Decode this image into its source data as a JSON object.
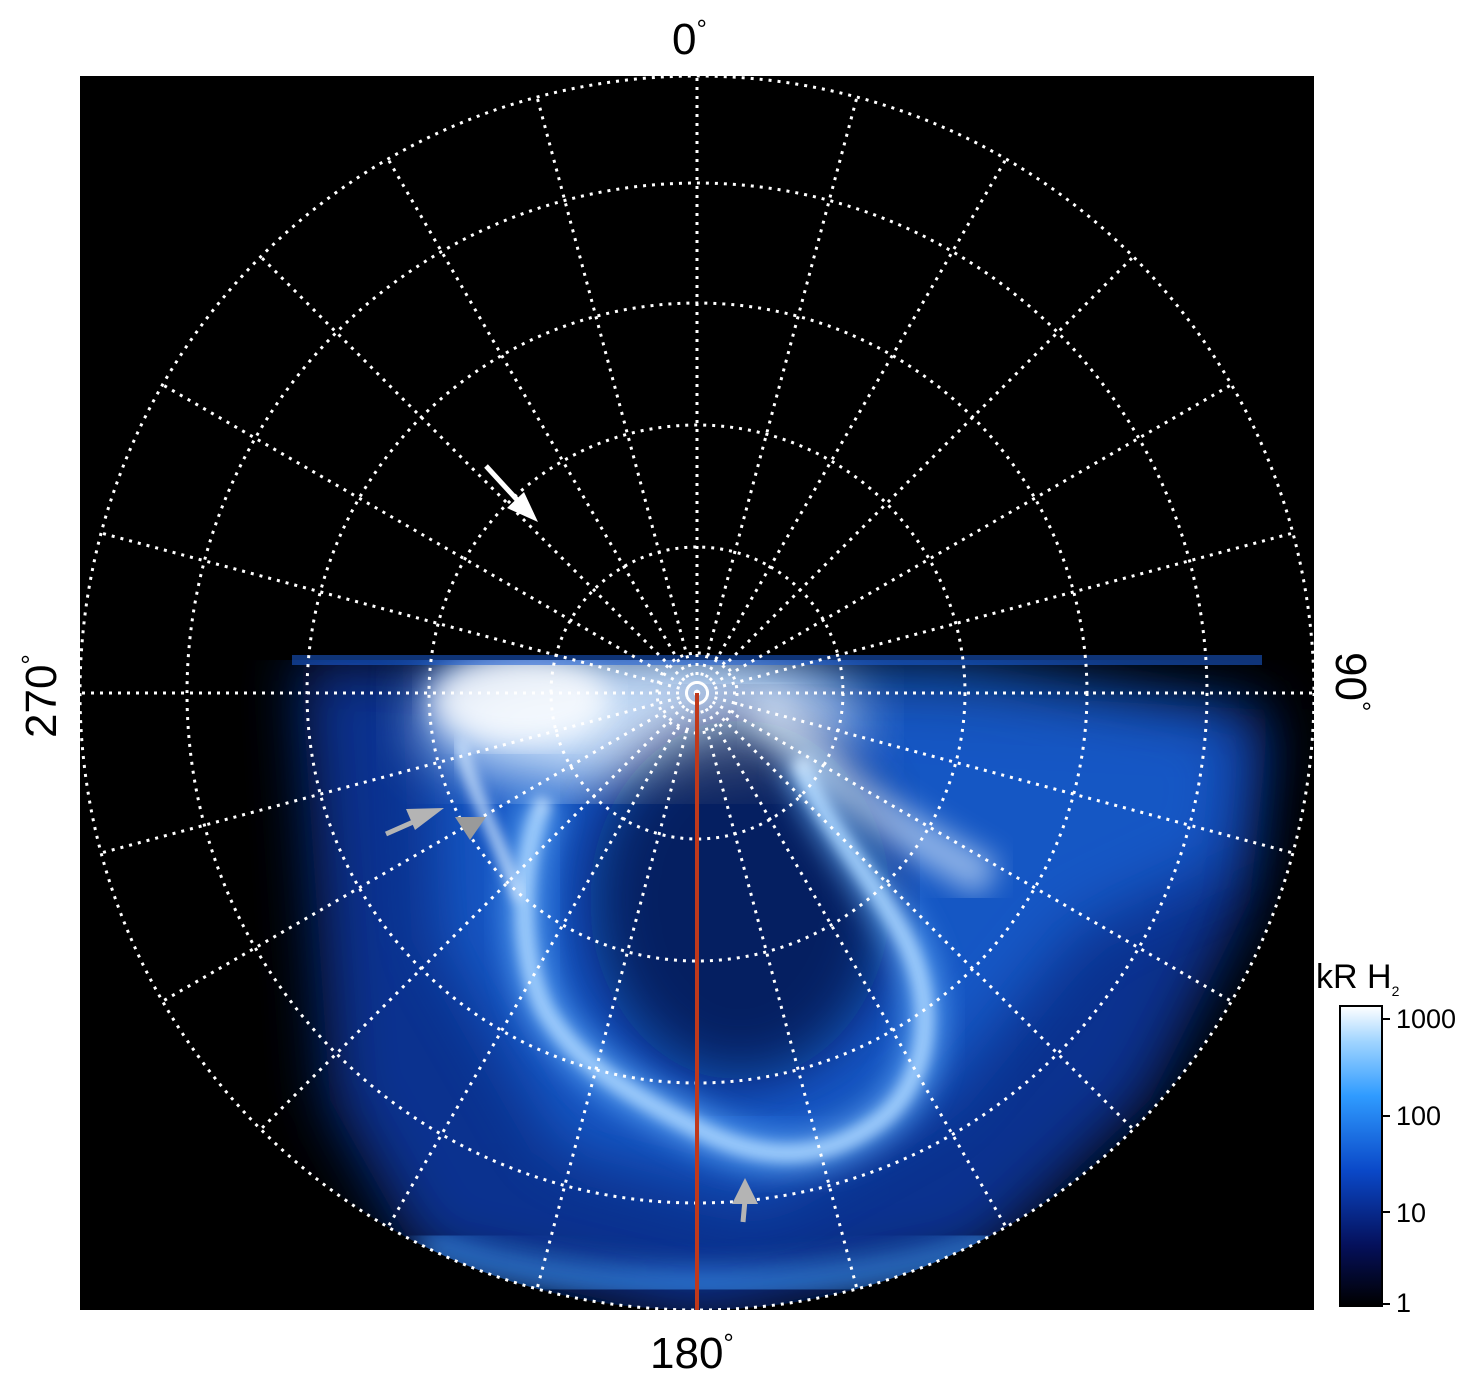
{
  "axis_labels": {
    "top": "0",
    "right": "90",
    "bottom": "180",
    "left": "270",
    "degree_symbol": "°"
  },
  "colorbar": {
    "title": "kR H",
    "title_subscript": "2",
    "ticks": [
      "1000",
      "100",
      "10",
      "1"
    ]
  },
  "colors": {
    "background": "#000000",
    "grid": "#ffffff",
    "meridian_line": "#c0391b",
    "arrow_white": "#ffffff",
    "arrow_gray": "#b4b4b4",
    "emission_bright": "#f4f9ff",
    "emission_mid": "#2f8cff",
    "emission_dim": "#0a2a80"
  }
}
